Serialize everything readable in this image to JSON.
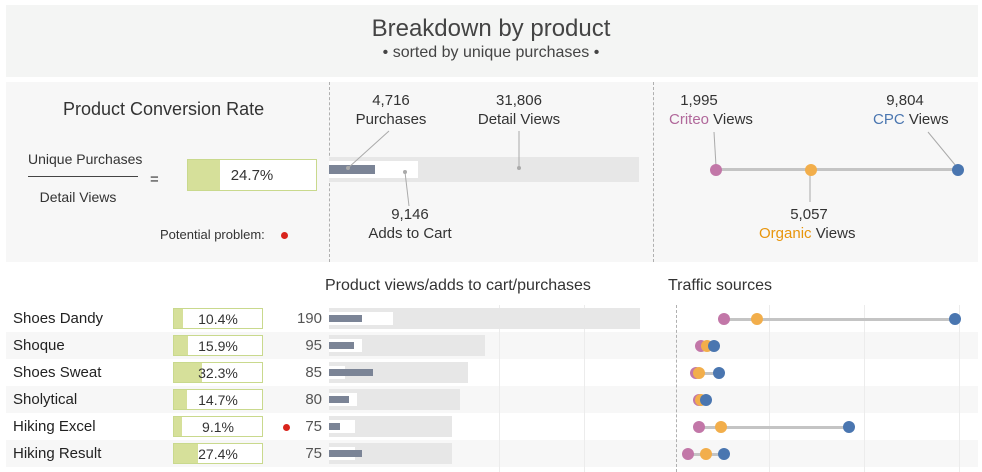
{
  "header": {
    "title": "Breakdown by product",
    "subtitle": "• sorted by unique purchases •"
  },
  "legend": {
    "conversion_title": "Product Conversion Rate",
    "formula_numerator": "Unique Purchases",
    "formula_denominator": "Detail Views",
    "formula_equals": "=",
    "example_rate": "24.7%",
    "example_rate_value": 0.247,
    "potential_problem": "Potential problem:",
    "funnel": {
      "purchases_value": "4,716",
      "purchases_label": "Purchases",
      "detail_views_value": "31,806",
      "detail_views_label": "Detail Views",
      "adds_value": "9,146",
      "adds_label": "Adds to Cart"
    },
    "traffic": {
      "criteo_value": "1,995",
      "criteo_label": "Criteo",
      "criteo_suffix": " Views",
      "cpc_value": "9,804",
      "cpc_label": "CPC",
      "cpc_suffix": " Views",
      "organic_value": "5,057",
      "organic_label": "Organic",
      "organic_suffix": " Views"
    }
  },
  "columns": {
    "funnel_header": "Product views/adds to cart/purchases",
    "traffic_header": "Traffic sources"
  },
  "colors": {
    "criteo": "#c277a8",
    "organic": "#f2ae4b",
    "cpc": "#4a76b0",
    "problem": "#d9241c",
    "rate": "#d6e09a"
  },
  "rows": [
    {
      "name": "Shoes Dandy",
      "rate": "10.4%",
      "rate_value": 0.104,
      "problem": false,
      "views": "190",
      "views_value": 190,
      "cart_value": 39,
      "purchase_value": 20,
      "criteo": 32,
      "organic": 52,
      "cpc": 172
    },
    {
      "name": "Shoque",
      "rate": "15.9%",
      "rate_value": 0.159,
      "problem": false,
      "views": "95",
      "views_value": 95,
      "cart_value": 20,
      "purchase_value": 15,
      "criteo": 18,
      "organic": 22,
      "cpc": 26
    },
    {
      "name": "Shoes Sweat",
      "rate": "32.3%",
      "rate_value": 0.323,
      "problem": false,
      "views": "85",
      "views_value": 85,
      "cart_value": 10,
      "purchase_value": 27,
      "criteo": 15,
      "organic": 17,
      "cpc": 29
    },
    {
      "name": "Sholytical",
      "rate": "14.7%",
      "rate_value": 0.147,
      "problem": false,
      "views": "80",
      "views_value": 80,
      "cart_value": 17,
      "purchase_value": 12,
      "criteo": 17,
      "organic": 18,
      "cpc": 21
    },
    {
      "name": "Hiking Excel",
      "rate": "9.1%",
      "rate_value": 0.091,
      "problem": true,
      "views": "75",
      "views_value": 75,
      "cart_value": 16,
      "purchase_value": 7,
      "criteo": 17,
      "organic": 30,
      "cpc": 108
    },
    {
      "name": "Hiking Result",
      "rate": "27.4%",
      "rate_value": 0.274,
      "problem": false,
      "views": "75",
      "views_value": 75,
      "cart_value": 16,
      "purchase_value": 20,
      "criteo": 10,
      "organic": 21,
      "cpc": 32
    }
  ]
}
